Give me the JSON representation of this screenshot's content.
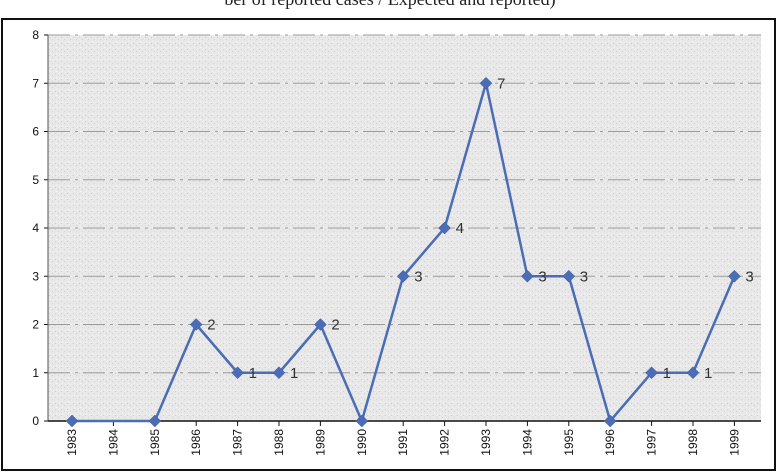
{
  "caption": "ber of reported cases / Expected and reported)",
  "colors": {
    "series": "#4a6db5",
    "grid": "#9a9a9a",
    "frame": "#111111",
    "plot_bg": "#e6e6e6"
  },
  "chart_data": {
    "type": "line",
    "title": "",
    "xlabel": "",
    "ylabel": "",
    "ylim": [
      0,
      8
    ],
    "yticks": [
      "0",
      "1",
      "2",
      "3",
      "4",
      "5",
      "6",
      "7",
      "8"
    ],
    "grid": true,
    "grid_style": "dash-dot",
    "legend": "none",
    "marker": "diamond",
    "categories": [
      "1983",
      "1984",
      "1985",
      "1986",
      "1987",
      "1988",
      "1989",
      "1990",
      "1991",
      "1992",
      "1993",
      "1994",
      "1995",
      "1996",
      "1997",
      "1998",
      "1999"
    ],
    "series": [
      {
        "x": [
          "1983",
          "1985",
          "1986",
          "1987",
          "1988",
          "1989",
          "1990",
          "1991",
          "1992",
          "1993",
          "1994",
          "1995",
          "1996",
          "1997",
          "1998",
          "1999"
        ],
        "values": [
          0,
          0,
          2,
          1,
          1,
          2,
          0,
          3,
          4,
          7,
          3,
          3,
          0,
          1,
          1,
          3
        ],
        "data_labels": [
          {
            "x": "1986",
            "text": "2"
          },
          {
            "x": "1987",
            "text": "1"
          },
          {
            "x": "1988",
            "text": "1"
          },
          {
            "x": "1989",
            "text": "2"
          },
          {
            "x": "1991",
            "text": "3"
          },
          {
            "x": "1992",
            "text": "4"
          },
          {
            "x": "1993",
            "text": "7"
          },
          {
            "x": "1994",
            "text": "3"
          },
          {
            "x": "1995",
            "text": "3"
          },
          {
            "x": "1997",
            "text": "1"
          },
          {
            "x": "1998",
            "text": "1"
          },
          {
            "x": "1999",
            "text": "3"
          }
        ]
      }
    ]
  }
}
